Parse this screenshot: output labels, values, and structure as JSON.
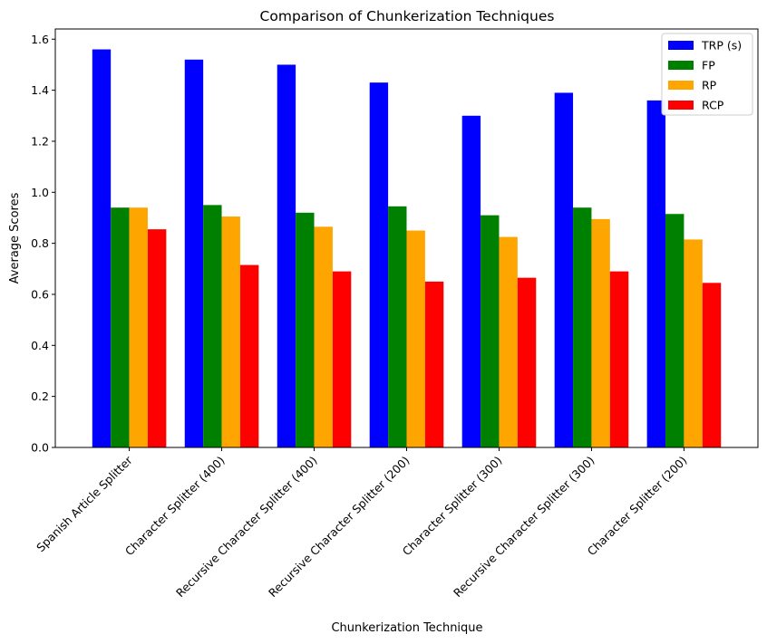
{
  "chart_data": {
    "type": "bar",
    "title": "Comparison of Chunkerization Techniques",
    "xlabel": "Chunkerization Technique",
    "ylabel": "Average Scores",
    "ylim": [
      0,
      1.64
    ],
    "yticks": [
      0.0,
      0.2,
      0.4,
      0.6,
      0.8,
      1.0,
      1.2,
      1.4,
      1.6
    ],
    "ytick_labels": [
      "0.0",
      "0.2",
      "0.4",
      "0.6",
      "0.8",
      "1.0",
      "1.2",
      "1.4",
      "1.6"
    ],
    "grid": false,
    "legend_position": "top-right",
    "categories": [
      "Spanish Article Splitter",
      "Character Splitter (400)",
      "Recursive Character Splitter (400)",
      "Recursive Character Splitter (200)",
      "Character Splitter (300)",
      "Recursive Character Splitter (300)",
      "Character Splitter (200)"
    ],
    "series": [
      {
        "name": "TRP (s)",
        "color": "#0000ff",
        "values": [
          1.56,
          1.52,
          1.5,
          1.43,
          1.3,
          1.39,
          1.36
        ]
      },
      {
        "name": "FP",
        "color": "#008000",
        "values": [
          0.94,
          0.95,
          0.92,
          0.945,
          0.91,
          0.94,
          0.915
        ]
      },
      {
        "name": "RP",
        "color": "#ffa500",
        "values": [
          0.94,
          0.905,
          0.865,
          0.85,
          0.825,
          0.895,
          0.815
        ]
      },
      {
        "name": "RCP",
        "color": "#ff0000",
        "values": [
          0.855,
          0.715,
          0.69,
          0.65,
          0.665,
          0.69,
          0.645
        ]
      }
    ]
  }
}
